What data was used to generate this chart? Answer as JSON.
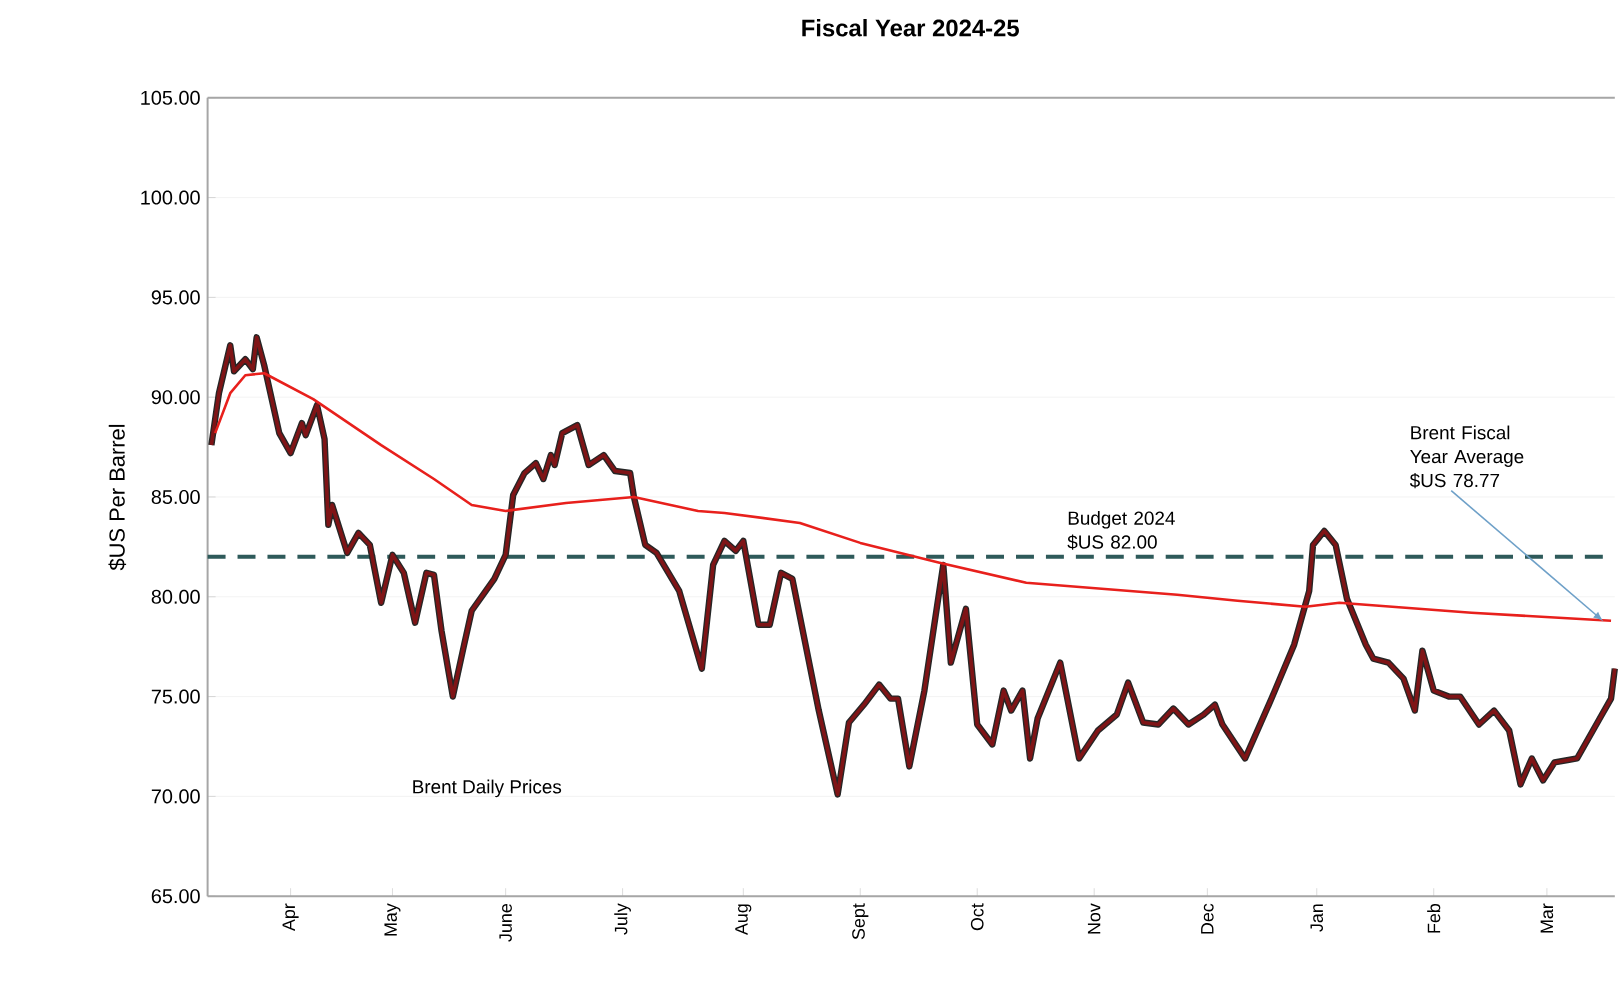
{
  "chart_data": {
    "type": "line",
    "title": "Fiscal Year 2024-25",
    "ylabel": "$US Per Barrel",
    "xlim": [
      "2024-04-01",
      "2025-04-09"
    ],
    "ylim": [
      65,
      105
    ],
    "xticks": [
      {
        "value": "2024-04-23",
        "label": "Apr"
      },
      {
        "value": "2024-05-20",
        "label": "May"
      },
      {
        "value": "2024-06-19",
        "label": "June"
      },
      {
        "value": "2024-07-20",
        "label": "July"
      },
      {
        "value": "2024-08-21",
        "label": "Aug"
      },
      {
        "value": "2024-09-21",
        "label": "Sept"
      },
      {
        "value": "2024-10-22",
        "label": "Oct"
      },
      {
        "value": "2024-11-22",
        "label": "Nov"
      },
      {
        "value": "2024-12-22",
        "label": "Dec"
      },
      {
        "value": "2025-01-20",
        "label": "Jan"
      },
      {
        "value": "2025-02-20",
        "label": "Feb"
      },
      {
        "value": "2025-03-22",
        "label": "Mar"
      }
    ],
    "yticks": [
      {
        "value": 65,
        "label": "65.00"
      },
      {
        "value": 70,
        "label": "70.00"
      },
      {
        "value": 75,
        "label": "75.00"
      },
      {
        "value": 80,
        "label": "80.00"
      },
      {
        "value": 85,
        "label": "85.00"
      },
      {
        "value": 90,
        "label": "90.00"
      },
      {
        "value": 95,
        "label": "95.00"
      },
      {
        "value": 100,
        "label": "100.00"
      },
      {
        "value": 105,
        "label": "105.00"
      }
    ],
    "grid": "y",
    "series": [
      {
        "color": "#7f1416",
        "x": [
          "2024-04-02",
          "2024-04-04",
          "2024-04-07",
          "2024-04-08",
          "2024-04-11",
          "2024-04-13",
          "2024-04-14",
          "2024-04-16",
          "2024-04-20",
          "2024-04-23",
          "2024-04-26",
          "2024-04-27",
          "2024-04-30",
          "2024-05-02",
          "2024-05-03",
          "2024-05-04",
          "2024-05-08",
          "2024-05-11",
          "2024-05-14",
          "2024-05-17",
          "2024-05-20",
          "2024-05-23",
          "2024-05-26",
          "2024-05-29",
          "2024-05-31",
          "2024-06-02",
          "2024-06-05",
          "2024-06-08",
          "2024-06-10",
          "2024-06-16",
          "2024-06-19",
          "2024-06-21",
          "2024-06-24",
          "2024-06-27",
          "2024-06-29",
          "2024-07-01",
          "2024-07-02",
          "2024-07-04",
          "2024-07-08",
          "2024-07-11",
          "2024-07-15",
          "2024-07-18",
          "2024-07-22",
          "2024-07-23",
          "2024-07-26",
          "2024-07-29",
          "2024-08-04",
          "2024-08-10",
          "2024-08-13",
          "2024-08-16",
          "2024-08-19",
          "2024-08-21",
          "2024-08-25",
          "2024-08-28",
          "2024-08-31",
          "2024-09-03",
          "2024-09-10",
          "2024-09-15",
          "2024-09-18",
          "2024-09-22",
          "2024-09-26",
          "2024-09-29",
          "2024-10-01",
          "2024-10-04",
          "2024-10-08",
          "2024-10-13",
          "2024-10-15",
          "2024-10-19",
          "2024-10-22",
          "2024-10-26",
          "2024-10-29",
          "2024-10-31",
          "2024-11-03",
          "2024-11-05",
          "2024-11-07",
          "2024-11-13",
          "2024-11-18",
          "2024-11-23",
          "2024-11-28",
          "2024-12-01",
          "2024-12-05",
          "2024-12-09",
          "2024-12-13",
          "2024-12-17",
          "2024-12-21",
          "2024-12-24",
          "2024-12-26",
          "2025-01-01",
          "2025-01-08",
          "2025-01-14",
          "2025-01-18",
          "2025-01-19",
          "2025-01-22",
          "2025-01-25",
          "2025-01-28",
          "2025-02-02",
          "2025-02-04",
          "2025-02-08",
          "2025-02-12",
          "2025-02-15",
          "2025-02-17",
          "2025-02-20",
          "2025-02-24",
          "2025-02-27",
          "2025-03-04",
          "2025-03-08",
          "2025-03-12",
          "2025-03-15",
          "2025-03-18",
          "2025-03-21",
          "2025-03-24",
          "2025-03-30",
          "2025-04-05",
          "2025-04-08",
          "2025-04-09"
        ],
        "values": [
          87.6,
          90.2,
          92.6,
          91.3,
          91.9,
          91.4,
          93.0,
          91.6,
          88.2,
          87.2,
          88.7,
          88.1,
          89.6,
          87.9,
          83.6,
          84.6,
          82.2,
          83.2,
          82.6,
          79.7,
          82.1,
          81.2,
          78.7,
          81.2,
          81.1,
          78.3,
          75.0,
          77.6,
          79.3,
          80.9,
          82.1,
          85.1,
          86.2,
          86.7,
          85.9,
          87.1,
          86.6,
          88.2,
          88.6,
          86.6,
          87.1,
          86.3,
          86.2,
          85.0,
          82.6,
          82.2,
          80.3,
          76.4,
          81.6,
          82.8,
          82.3,
          82.8,
          78.6,
          78.6,
          81.2,
          80.9,
          74.3,
          70.1,
          73.7,
          74.6,
          75.6,
          74.9,
          74.9,
          71.5,
          75.3,
          81.6,
          76.7,
          79.4,
          73.6,
          72.6,
          75.3,
          74.3,
          75.3,
          71.9,
          73.9,
          76.7,
          71.9,
          73.3,
          74.1,
          75.7,
          73.7,
          73.6,
          74.4,
          73.6,
          74.1,
          74.6,
          73.6,
          71.9,
          74.9,
          77.6,
          80.3,
          82.6,
          83.3,
          82.6,
          79.9,
          77.6,
          76.9,
          76.7,
          75.9,
          74.3,
          77.3,
          75.3,
          75.0,
          75.0,
          73.6,
          74.3,
          73.3,
          70.6,
          71.9,
          70.8,
          71.7,
          71.9,
          73.9,
          74.9,
          76.4
        ]
      },
      {
        "color": "#e8201c",
        "x": [
          "2024-04-03",
          "2024-04-07",
          "2024-04-11",
          "2024-04-16",
          "2024-04-29",
          "2024-05-17",
          "2024-05-31",
          "2024-06-10",
          "2024-06-19",
          "2024-07-05",
          "2024-07-23",
          "2024-08-09",
          "2024-08-16",
          "2024-09-05",
          "2024-09-21",
          "2024-10-12",
          "2024-11-04",
          "2024-12-14",
          "2024-12-30",
          "2025-01-17",
          "2025-01-26",
          "2025-03-02",
          "2025-04-08"
        ],
        "values": [
          88.2,
          90.2,
          91.1,
          91.2,
          89.9,
          87.6,
          85.9,
          84.6,
          84.3,
          84.7,
          85.0,
          84.3,
          84.2,
          83.7,
          82.7,
          81.7,
          80.7,
          80.1,
          79.8,
          79.5,
          79.7,
          79.2,
          78.8
        ]
      }
    ],
    "ref_lines": [
      {
        "axis": "y",
        "value": 82,
        "label": "Budget 2024 $US 82.00",
        "color": "#2e5a5a",
        "line_style": "dashed"
      }
    ],
    "annotations": [
      "Brent Daily Prices",
      {
        "text": "Brent Fiscal Year Average $US 78.77",
        "x": "2025-04-06",
        "y": 78.77
      }
    ]
  }
}
